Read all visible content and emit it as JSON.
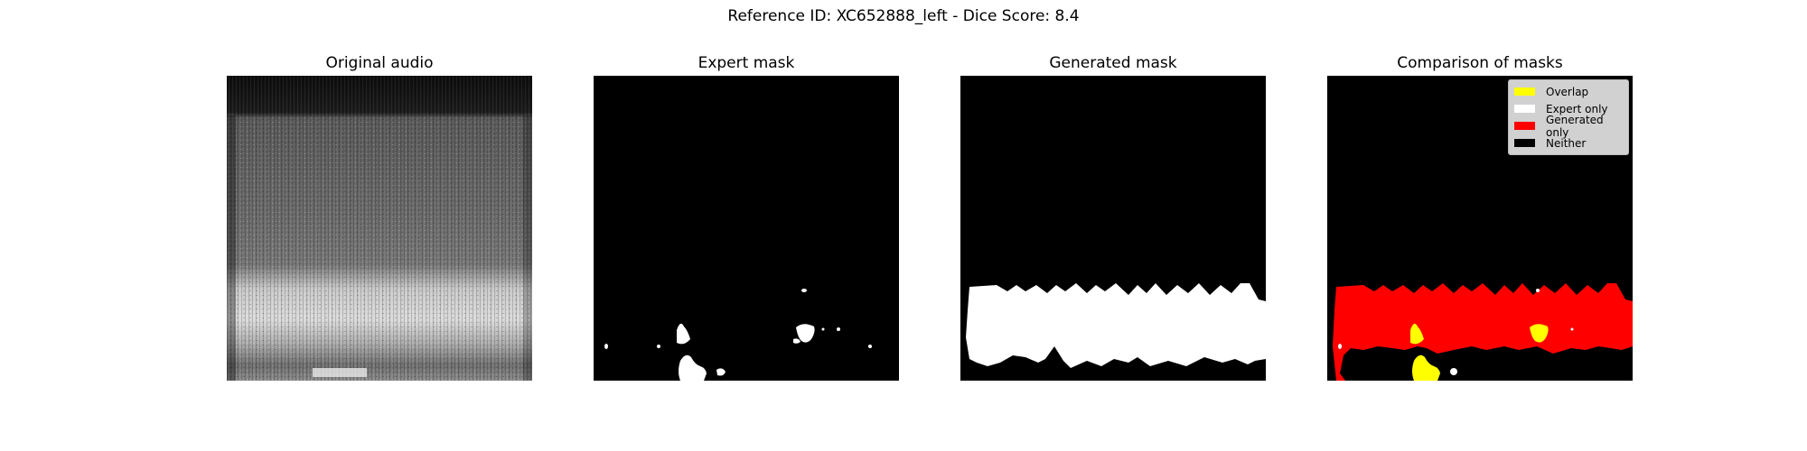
{
  "figure": {
    "title": "Reference ID: XC652888_left - Dice Score: 8.4"
  },
  "panels": {
    "original": {
      "title": "Original audio"
    },
    "expert": {
      "title": "Expert mask"
    },
    "generated": {
      "title": "Generated mask"
    },
    "comparison": {
      "title": "Comparison of masks"
    }
  },
  "legend": {
    "items": [
      {
        "label": "Overlap",
        "color": "#ffff00"
      },
      {
        "label": "Expert only",
        "color": "#ffffff"
      },
      {
        "label": "Generated only",
        "color": "#ff0000"
      },
      {
        "label": "Neither",
        "color": "#000000"
      }
    ]
  },
  "colors": {
    "overlap": "#ffff00",
    "expert_only": "#ffffff",
    "generated_only": "#ff0000",
    "neither": "#000000"
  }
}
